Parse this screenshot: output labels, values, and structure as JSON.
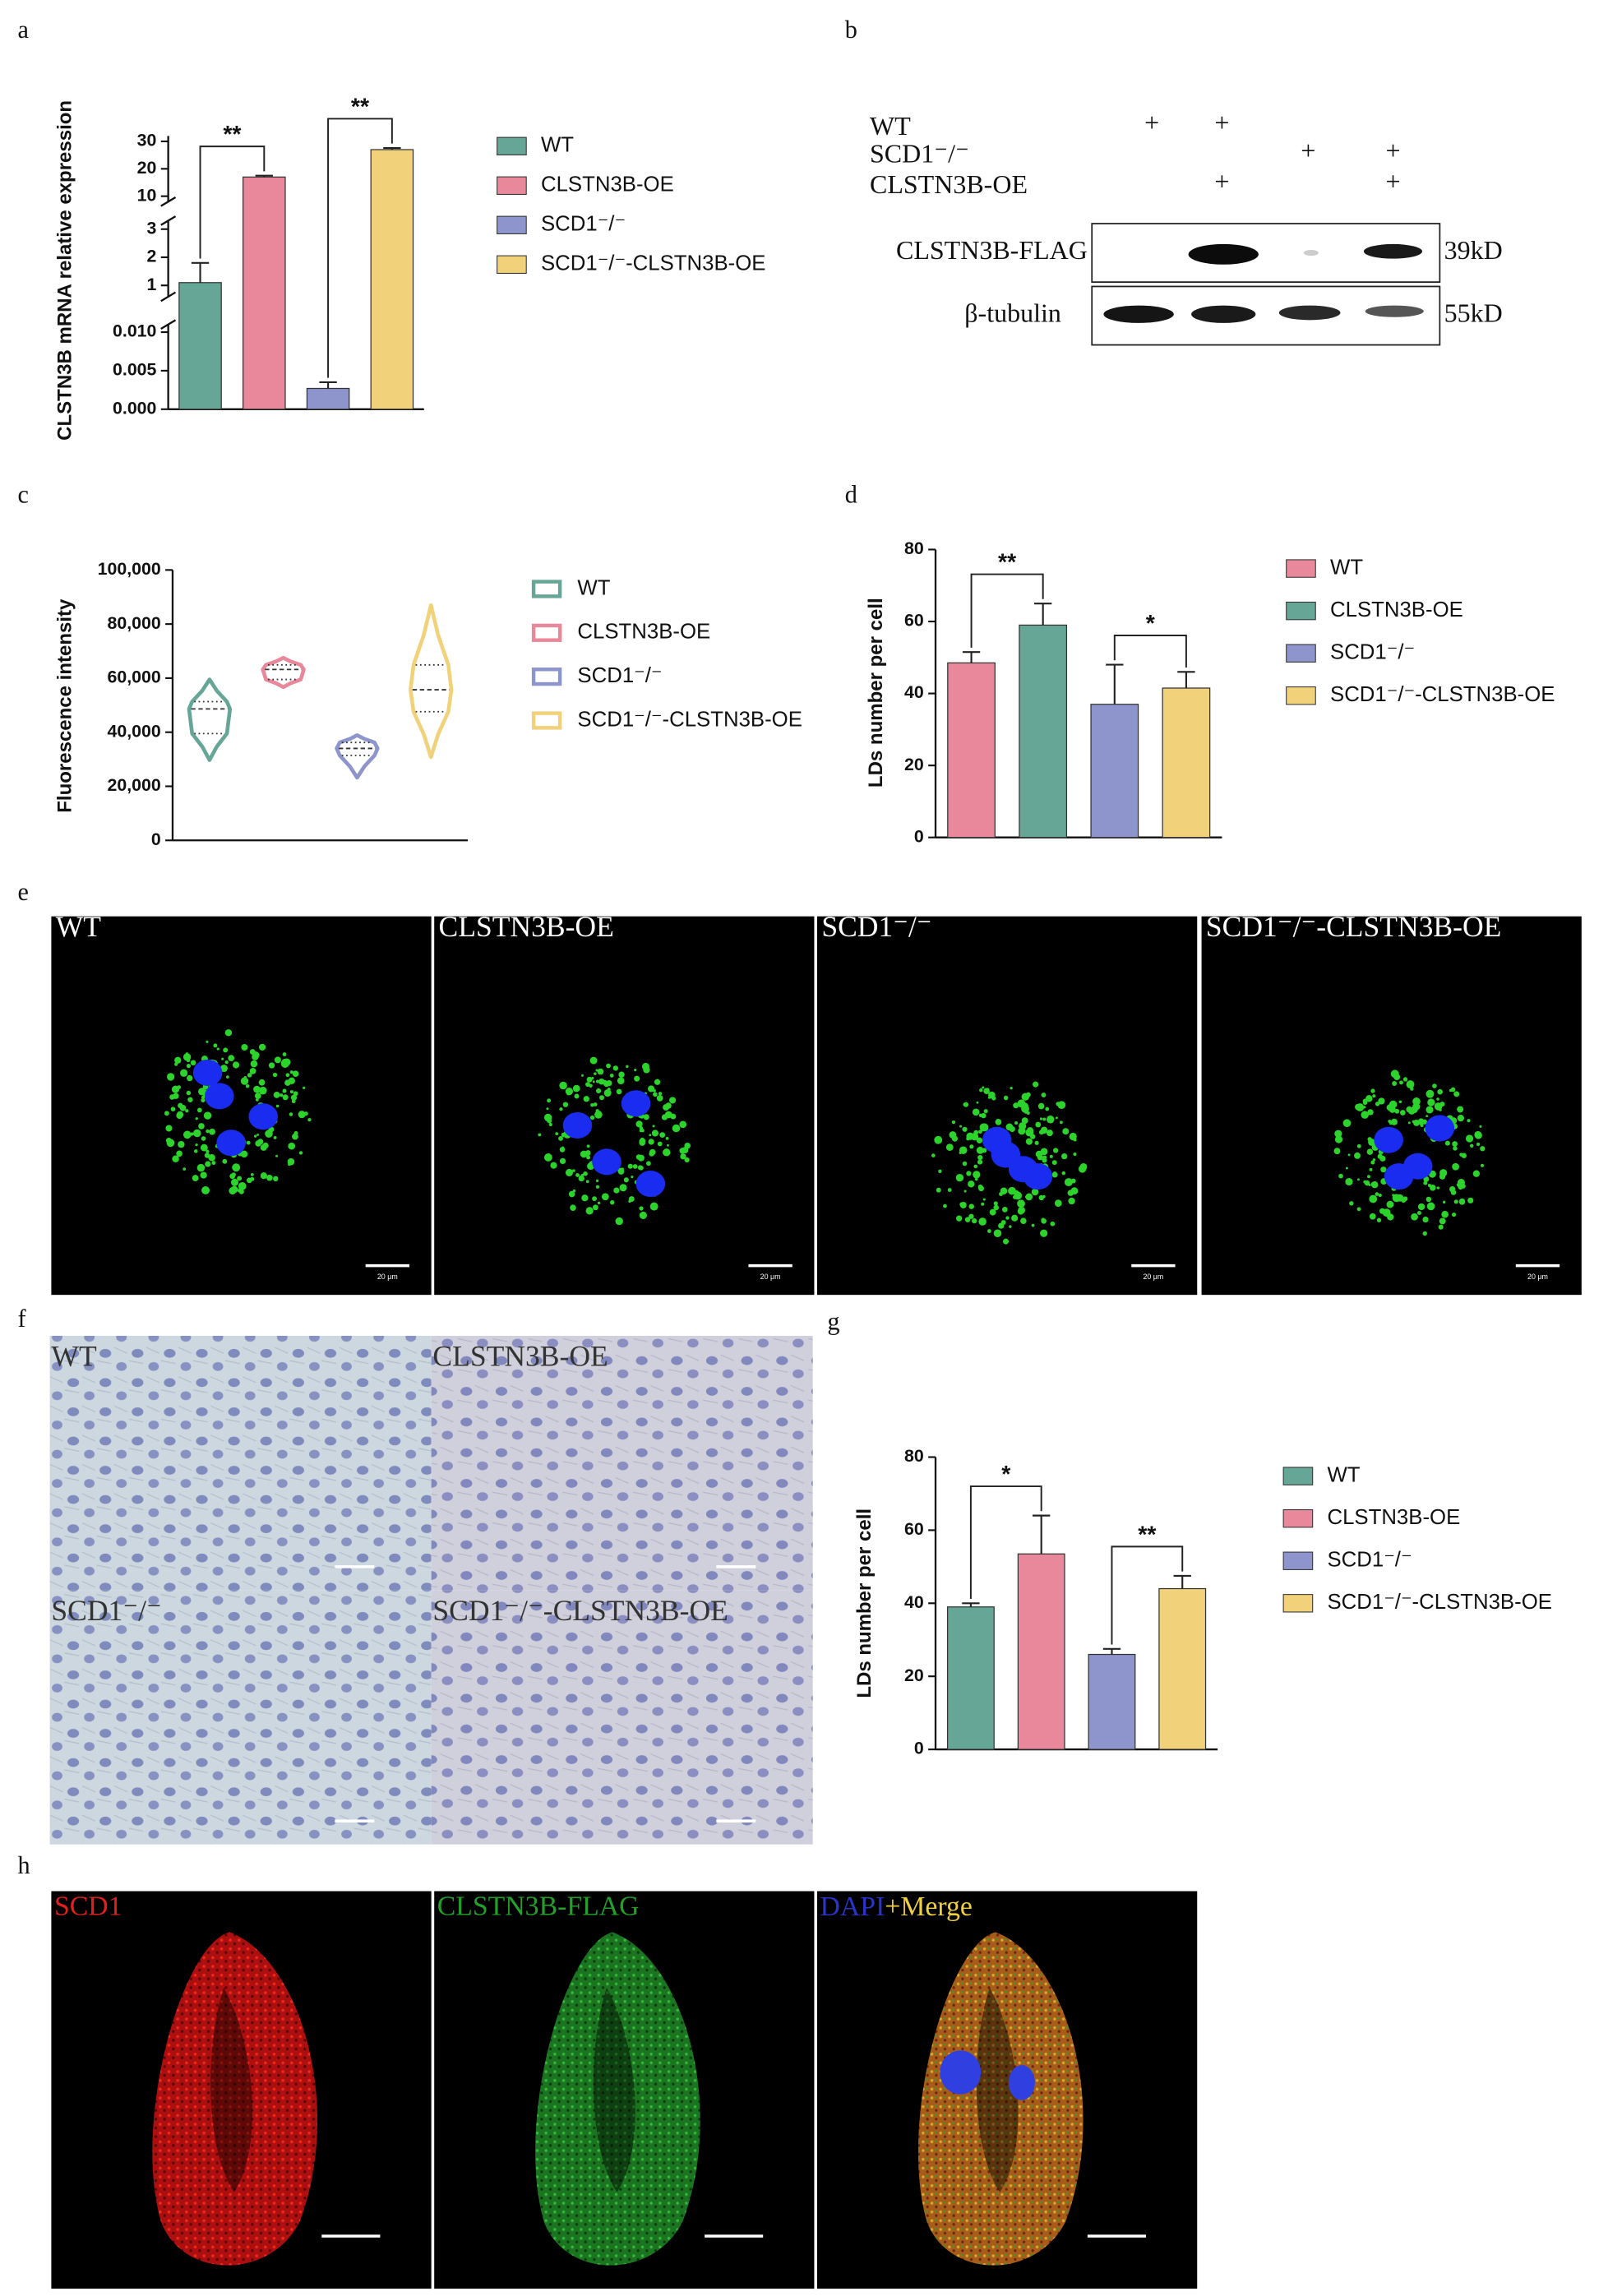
{
  "panels": {
    "letters": [
      "a",
      "b",
      "c",
      "d",
      "e",
      "f",
      "g",
      "h"
    ]
  },
  "chart_data": [
    {
      "type": "bar",
      "ylabel": "CLSTN3B  mRNA relative expression",
      "categories": [
        "WT",
        "CLSTN3B-OE",
        "SCD1⁻/⁻",
        "SCD1⁻/⁻-CLSTN3B-OE"
      ],
      "colors": [
        "#66a696",
        "#e8889a",
        "#8d95cc",
        "#f1d27a"
      ],
      "values": [
        1.1,
        17,
        0.0027,
        27
      ],
      "errors": [
        0.7,
        0.5,
        0.0008,
        0.6
      ],
      "y_segments": [
        {
          "ylim": [
            0,
            0.011
          ],
          "yticks": [
            {
              "value": 0,
              "label": "0.000"
            },
            0.005,
            {
              "value": 0.01,
              "label": "0.010"
            }
          ]
        },
        {
          "ylim": [
            0.6,
            3.3
          ],
          "yticks": [
            1,
            2,
            3
          ]
        },
        {
          "ylim": [
            8,
            32
          ],
          "yticks": [
            10,
            20,
            30
          ]
        }
      ],
      "annotations": [
        "**",
        "**"
      ],
      "legend": "right"
    },
    {
      "type": "violin",
      "ylabel": "Fluorescence intensity",
      "categories": [
        "WT",
        "CLSTN3B-OE",
        "SCD1⁻/⁻",
        "SCD1⁻/⁻-CLSTN3B-OE"
      ],
      "colors": [
        "#66a696",
        "#e8889a",
        "#8d95cc",
        "#f1d27a"
      ],
      "stats": [
        {
          "min": 29700,
          "q1": 39500,
          "median": 48600,
          "q3": 51300,
          "max": 59500
        },
        {
          "min": 56700,
          "q1": 59500,
          "median": 63200,
          "q3": 64900,
          "max": 67500
        },
        {
          "min": 23200,
          "q1": 31400,
          "median": 34000,
          "q3": 36200,
          "max": 38900
        },
        {
          "min": 30800,
          "q1": 47600,
          "median": 55700,
          "q3": 64900,
          "max": 87000
        }
      ],
      "ylim": [
        0,
        100000
      ],
      "yticks": [
        0,
        {
          "value": 20000,
          "label": "20,000"
        },
        {
          "value": 40000,
          "label": "40,000"
        },
        {
          "value": 60000,
          "label": "60,000"
        },
        {
          "value": 80000,
          "label": "80,000"
        },
        {
          "value": 100000,
          "label": "100,000"
        }
      ],
      "legend": "right"
    },
    {
      "type": "bar",
      "ylabel": "LDs number per cell",
      "categories": [
        "WT",
        "CLSTN3B-OE",
        "SCD1⁻/⁻",
        "SCD1⁻/⁻-CLSTN3B-OE"
      ],
      "colors": [
        "#e8889a",
        "#66a696",
        "#8d95cc",
        "#f1d27a"
      ],
      "values": [
        48.5,
        59,
        37,
        41.5
      ],
      "errors": [
        3,
        6,
        11,
        4.5
      ],
      "ylim": [
        0,
        80
      ],
      "yticks": [
        0,
        20,
        40,
        60,
        80
      ],
      "annotations": [
        "**",
        "*"
      ],
      "legend": "right"
    },
    {
      "type": "bar",
      "ylabel": "LDs number per cell",
      "categories": [
        "WT",
        "CLSTN3B-OE",
        "SCD1⁻/⁻",
        "SCD1⁻/⁻-CLSTN3B-OE"
      ],
      "colors": [
        "#66a696",
        "#e8889a",
        "#8d95cc",
        "#f1d27a"
      ],
      "values": [
        39,
        53.5,
        26,
        44
      ],
      "errors": [
        1,
        10.5,
        1.5,
        3.5
      ],
      "ylim": [
        0,
        80
      ],
      "yticks": [
        0,
        20,
        40,
        60,
        80
      ],
      "annotations": [
        "*",
        "**"
      ],
      "legend": "right"
    }
  ],
  "blot": {
    "rows": [
      {
        "label": "WT",
        "lanes": [
          "+",
          "+",
          null,
          null
        ]
      },
      {
        "label": "SCD1⁻/⁻",
        "lanes": [
          null,
          null,
          "+",
          "+"
        ]
      },
      {
        "label": "CLSTN3B-OE",
        "lanes": [
          null,
          "+",
          null,
          "+"
        ]
      }
    ],
    "bands": [
      {
        "label": "CLSTN3B-FLAG",
        "size": "39kD"
      },
      {
        "label": "β-tubulin",
        "size": "55kD"
      }
    ]
  },
  "images_e": {
    "labels": [
      "WT",
      "CLSTN3B-OE",
      "SCD1⁻/⁻",
      "SCD1⁻/⁻-CLSTN3B-OE"
    ],
    "scale": "20 μm"
  },
  "images_f": {
    "labels": [
      "WT",
      "CLSTN3B-OE",
      "SCD1⁻/⁻",
      "SCD1⁻/⁻-CLSTN3B-OE"
    ]
  },
  "images_h": {
    "labels": [
      "SCD1",
      "CLSTN3B-FLAG"
    ],
    "merge_label": [
      "DAPI",
      "+Merge"
    ]
  }
}
